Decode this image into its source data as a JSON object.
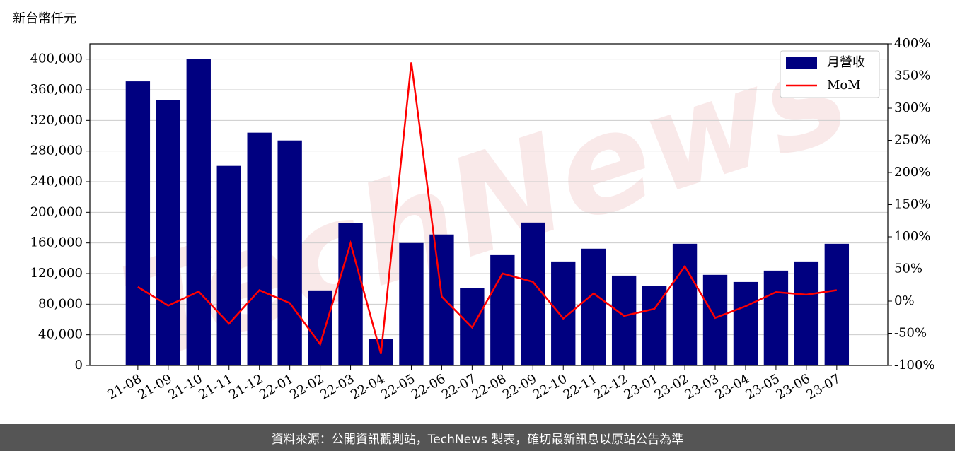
{
  "chart_data": {
    "type": "bar",
    "y_label": "新台幣仟元",
    "watermark": "TechNews",
    "categories": [
      "21-08",
      "21-09",
      "21-10",
      "21-11",
      "21-12",
      "22-01",
      "22-02",
      "22-03",
      "22-04",
      "22-05",
      "22-06",
      "22-07",
      "22-08",
      "22-09",
      "22-10",
      "22-11",
      "22-12",
      "23-01",
      "23-02",
      "23-03",
      "23-04",
      "23-05",
      "23-06",
      "23-07"
    ],
    "series": [
      {
        "name": "月營收",
        "type": "bar",
        "color": "#000080",
        "values": [
          371000,
          346500,
          400000,
          260600,
          304000,
          293800,
          98000,
          185700,
          34200,
          159900,
          171000,
          100700,
          144100,
          186600,
          135800,
          152500,
          117300,
          103500,
          158900,
          118300,
          109000,
          123800,
          135800,
          158900
        ]
      },
      {
        "name": "MoM",
        "type": "line",
        "axis": "y2",
        "color": "#ff0000",
        "values": [
          22,
          -7,
          15,
          -35,
          17,
          -3,
          -67,
          90,
          -82,
          371,
          7,
          -41,
          43,
          30,
          -27,
          12,
          -23,
          -12,
          54,
          -26,
          -8,
          14,
          10,
          17
        ]
      }
    ],
    "ylim": [
      0,
      420000
    ],
    "yticks": [
      0,
      {
        "value": 40000,
        "label": "40,000"
      },
      {
        "value": 80000,
        "label": "80,000"
      },
      {
        "value": 120000,
        "label": "120,000"
      },
      {
        "value": 160000,
        "label": "160,000"
      },
      {
        "value": 200000,
        "label": "200,000"
      },
      {
        "value": 240000,
        "label": "240,000"
      },
      {
        "value": 280000,
        "label": "280,000"
      },
      {
        "value": 320000,
        "label": "320,000"
      },
      {
        "value": 360000,
        "label": "360,000"
      },
      {
        "value": 400000,
        "label": "400,000"
      }
    ],
    "y2lim": [
      -100,
      400
    ],
    "y2ticks": [
      {
        "value": -100,
        "label": "-100%"
      },
      {
        "value": -50,
        "label": "-50%"
      },
      {
        "value": 0,
        "label": "0%"
      },
      {
        "value": 50,
        "label": "50%"
      },
      {
        "value": 100,
        "label": "100%"
      },
      {
        "value": 150,
        "label": "150%"
      },
      {
        "value": 200,
        "label": "200%"
      },
      {
        "value": 250,
        "label": "250%"
      },
      {
        "value": 300,
        "label": "300%"
      },
      {
        "value": 350,
        "label": "350%"
      },
      {
        "value": 400,
        "label": "400%"
      }
    ],
    "grid": true,
    "legend": "upper right",
    "footer": "資料來源：公開資訊觀測站，TechNews 製表，確切最新訊息以原站公告為準"
  }
}
